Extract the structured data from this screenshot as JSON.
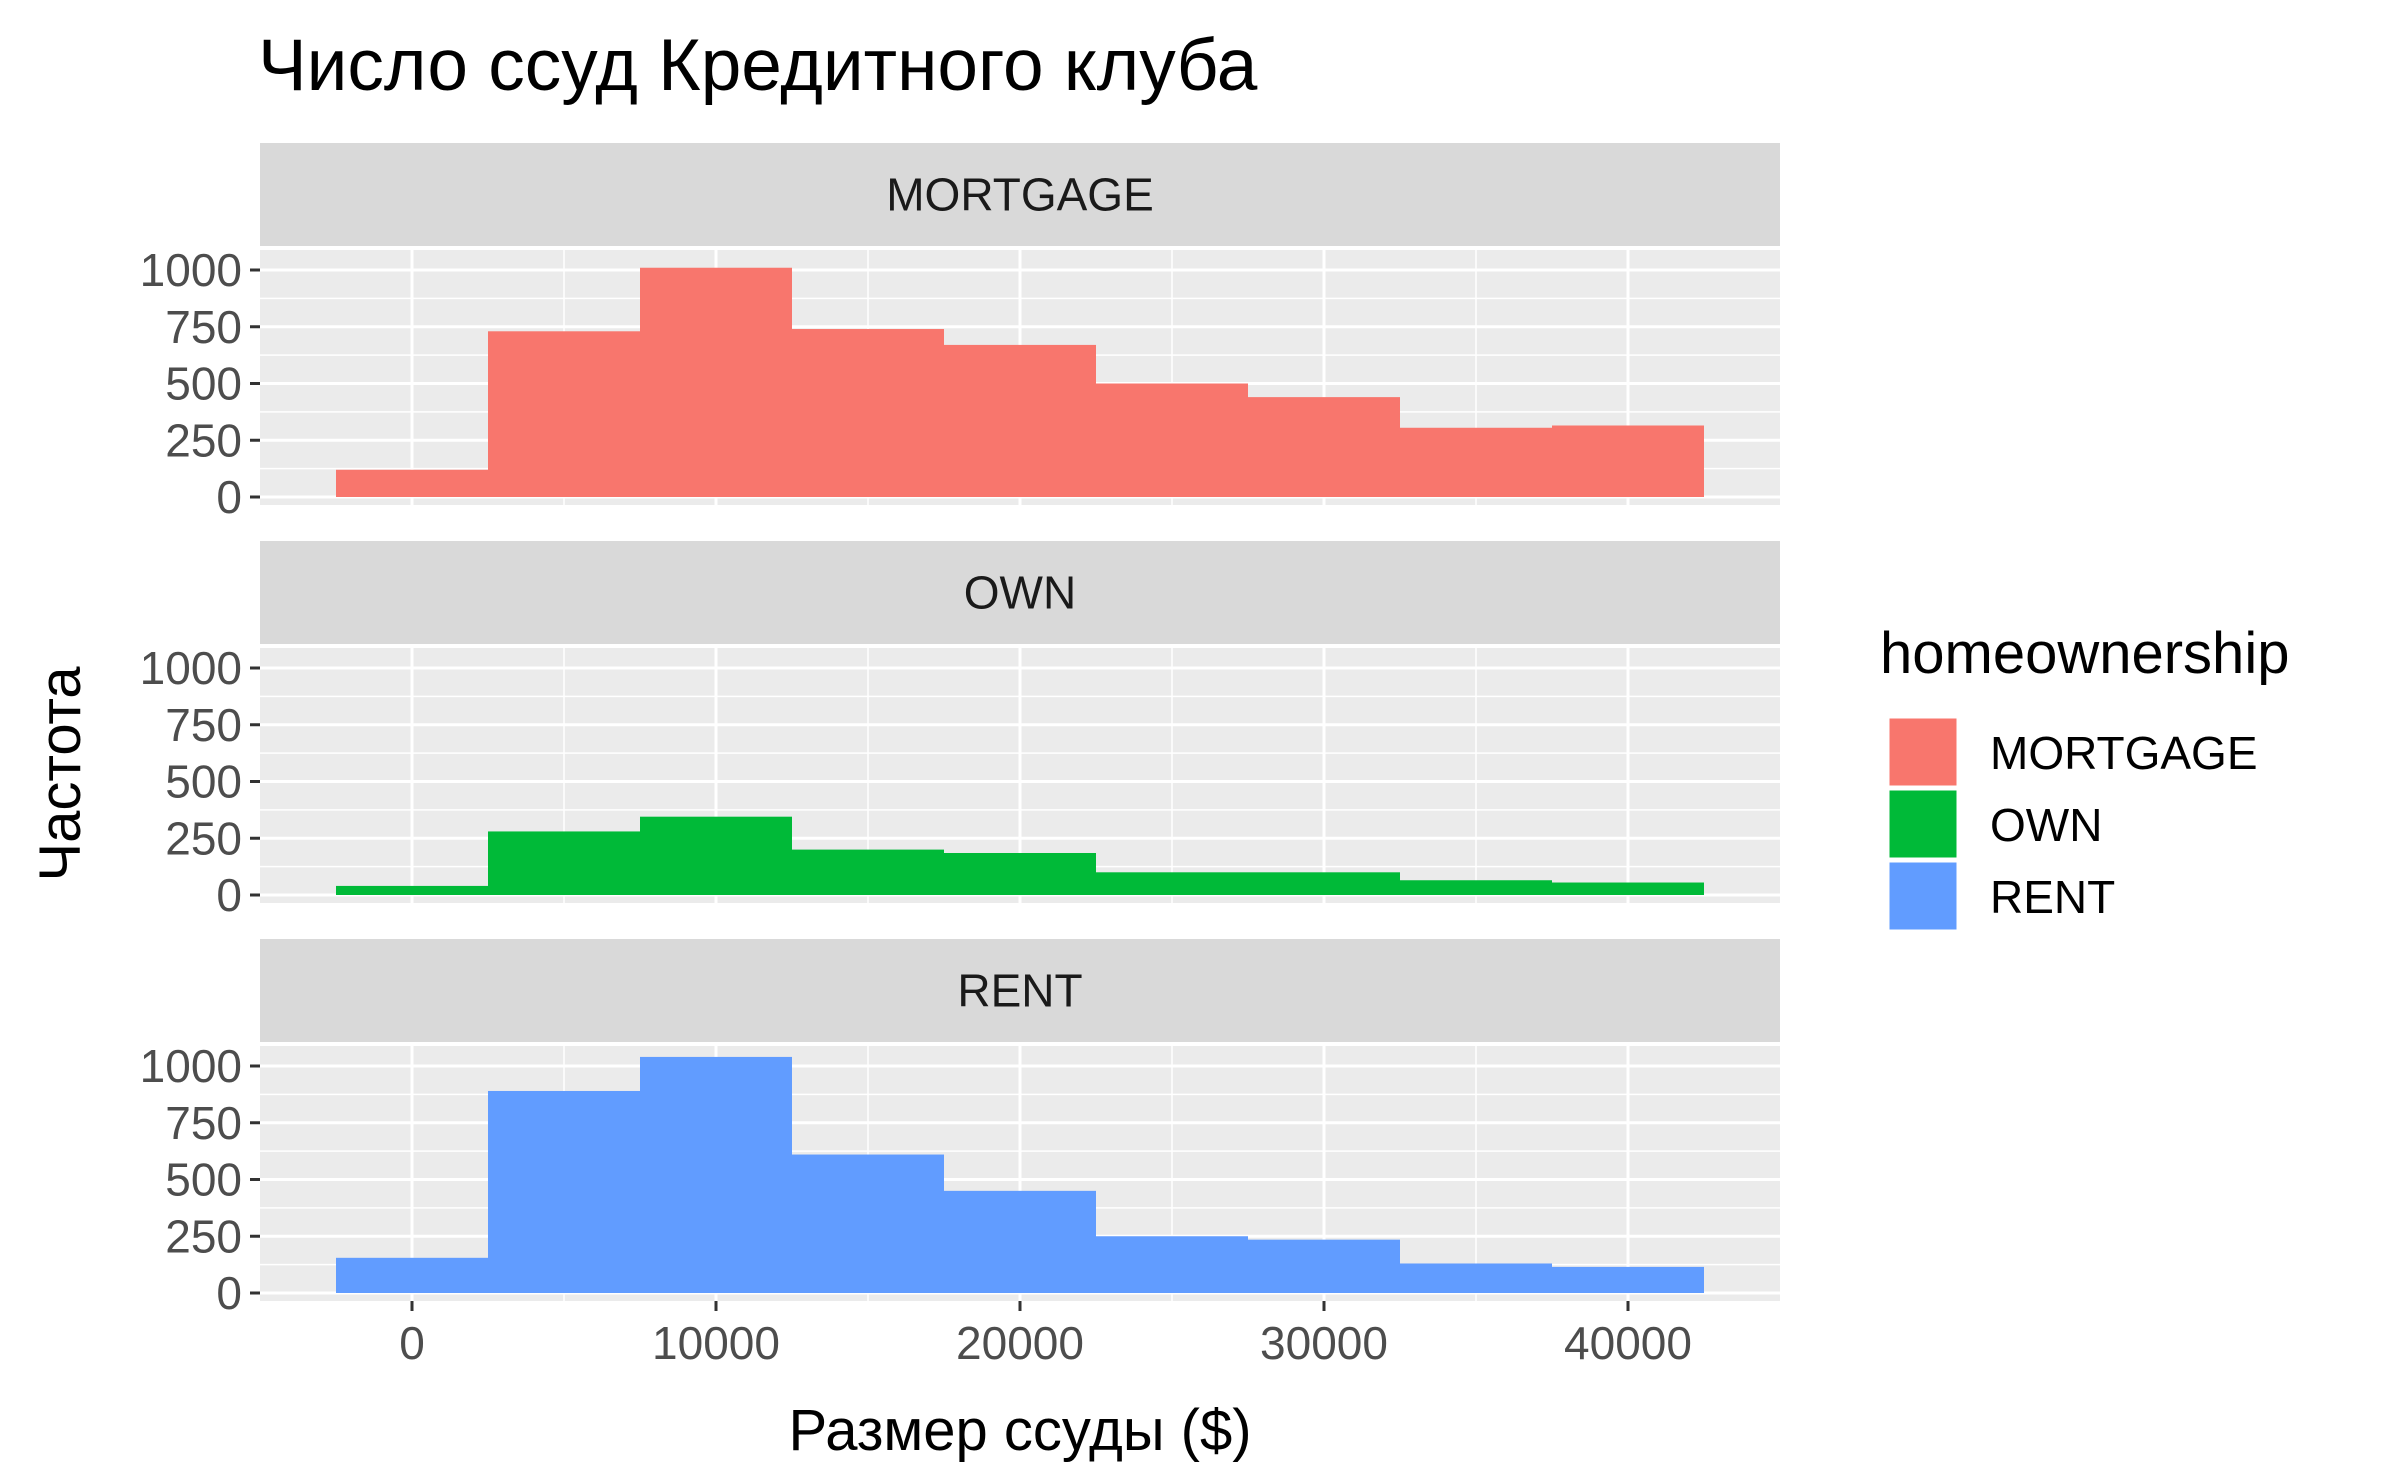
{
  "chart_data": {
    "type": "bar",
    "title": "Число ссуд Кредитного клуба",
    "xlabel": "Размер ссуды ($)",
    "ylabel": "Частота",
    "bin_edges": [
      -2500,
      2500,
      7500,
      12500,
      17500,
      22500,
      27500,
      32500,
      37500,
      42500
    ],
    "xlim": [
      -5000,
      45000
    ],
    "ylim": [
      0,
      1000
    ],
    "x_ticks": [
      0,
      10000,
      20000,
      30000,
      40000
    ],
    "x_tick_labels": [
      "0",
      "10000",
      "20000",
      "30000",
      "40000"
    ],
    "y_ticks": [
      0,
      250,
      500,
      750,
      1000
    ],
    "y_tick_labels": [
      "0",
      "250",
      "500",
      "750",
      "1000"
    ],
    "grid": true,
    "legend_position": "right",
    "legend": {
      "title": "homeownership",
      "entries": [
        {
          "label": "MORTGAGE",
          "color": "#F8766D"
        },
        {
          "label": "OWN",
          "color": "#00BA38"
        },
        {
          "label": "RENT",
          "color": "#619CFF"
        }
      ]
    },
    "series": [
      {
        "name": "MORTGAGE",
        "color": "#F8766D",
        "values": [
          120,
          730,
          1010,
          740,
          670,
          500,
          440,
          305,
          315
        ]
      },
      {
        "name": "OWN",
        "color": "#00BA38",
        "values": [
          40,
          280,
          345,
          200,
          185,
          100,
          100,
          65,
          55
        ]
      },
      {
        "name": "RENT",
        "color": "#619CFF",
        "values": [
          155,
          890,
          1040,
          610,
          450,
          250,
          235,
          130,
          115
        ]
      }
    ]
  }
}
